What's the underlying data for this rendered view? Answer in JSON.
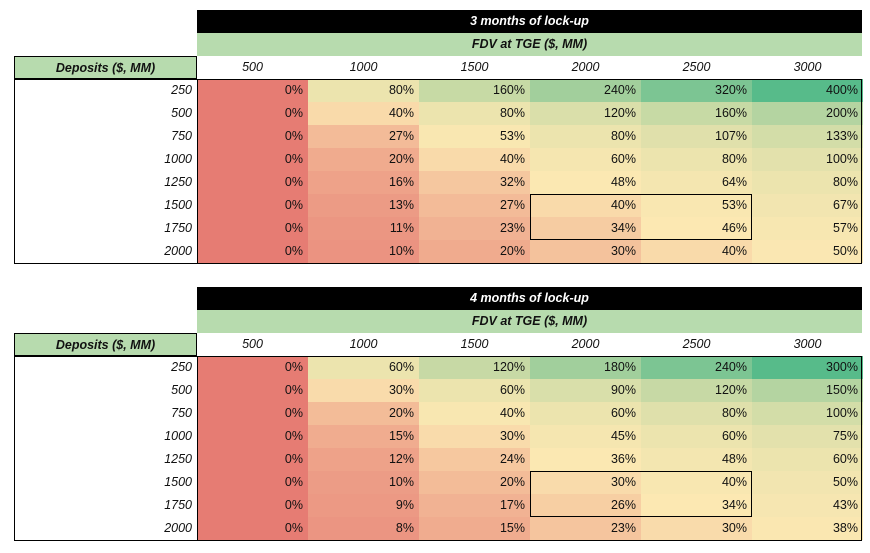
{
  "tables": [
    {
      "title": "3 months of lock-up",
      "subtitle": "FDV at TGE ($, MM)",
      "row_header": "Deposits ($, MM)",
      "columns": [
        "500",
        "1000",
        "1500",
        "2000",
        "2500",
        "3000"
      ],
      "rows": [
        {
          "label": "250",
          "values": [
            "0%",
            "80%",
            "160%",
            "240%",
            "320%",
            "400%"
          ]
        },
        {
          "label": "500",
          "values": [
            "0%",
            "40%",
            "80%",
            "120%",
            "160%",
            "200%"
          ]
        },
        {
          "label": "750",
          "values": [
            "0%",
            "27%",
            "53%",
            "80%",
            "107%",
            "133%"
          ]
        },
        {
          "label": "1000",
          "values": [
            "0%",
            "20%",
            "40%",
            "60%",
            "80%",
            "100%"
          ]
        },
        {
          "label": "1250",
          "values": [
            "0%",
            "16%",
            "32%",
            "48%",
            "64%",
            "80%"
          ]
        },
        {
          "label": "1500",
          "values": [
            "0%",
            "13%",
            "27%",
            "40%",
            "53%",
            "67%"
          ]
        },
        {
          "label": "1750",
          "values": [
            "0%",
            "11%",
            "23%",
            "34%",
            "46%",
            "57%"
          ]
        },
        {
          "label": "2000",
          "values": [
            "0%",
            "10%",
            "20%",
            "30%",
            "40%",
            "50%"
          ]
        }
      ]
    },
    {
      "title": "4 months of lock-up",
      "subtitle": "FDV at TGE ($, MM)",
      "row_header": "Deposits ($, MM)",
      "columns": [
        "500",
        "1000",
        "1500",
        "2000",
        "2500",
        "3000"
      ],
      "rows": [
        {
          "label": "250",
          "values": [
            "0%",
            "60%",
            "120%",
            "180%",
            "240%",
            "300%"
          ]
        },
        {
          "label": "500",
          "values": [
            "0%",
            "30%",
            "60%",
            "90%",
            "120%",
            "150%"
          ]
        },
        {
          "label": "750",
          "values": [
            "0%",
            "20%",
            "40%",
            "60%",
            "80%",
            "100%"
          ]
        },
        {
          "label": "1000",
          "values": [
            "0%",
            "15%",
            "30%",
            "45%",
            "60%",
            "75%"
          ]
        },
        {
          "label": "1250",
          "values": [
            "0%",
            "12%",
            "24%",
            "36%",
            "48%",
            "60%"
          ]
        },
        {
          "label": "1500",
          "values": [
            "0%",
            "10%",
            "20%",
            "30%",
            "40%",
            "50%"
          ]
        },
        {
          "label": "1750",
          "values": [
            "0%",
            "9%",
            "17%",
            "26%",
            "34%",
            "43%"
          ]
        },
        {
          "label": "2000",
          "values": [
            "0%",
            "8%",
            "15%",
            "23%",
            "30%",
            "38%"
          ]
        }
      ]
    }
  ],
  "colors": {
    "title_bg": "#000000",
    "header_bg": "#b7dbae",
    "scale_low": "#e67c73",
    "scale_mid": "#fce8b2",
    "scale_high": "#57bb8a"
  },
  "highlight": {
    "rows": [
      "1500",
      "1750"
    ],
    "columns": [
      "2000",
      "2500"
    ]
  }
}
